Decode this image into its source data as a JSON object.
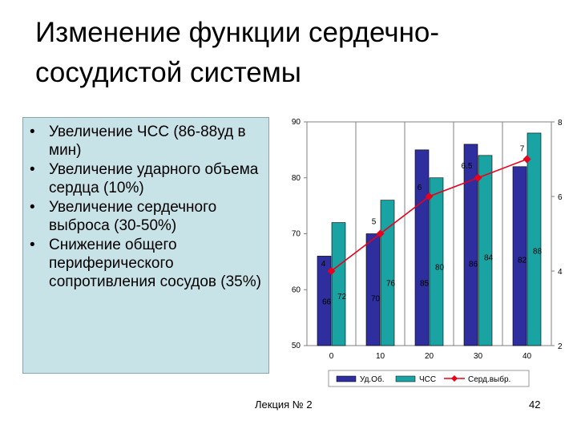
{
  "slide": {
    "title": "Изменение функции сердечно-сосудистой системы",
    "bullets": [
      "Увеличение ЧСС (86-88уд в мин)",
      "Увеличение ударного объема сердца (10%)",
      "Увеличение сердечного выброса (30-50%)",
      "Снижение общего периферического сопротивления сосудов (35%)"
    ],
    "bullet_symbol": "•",
    "footer_left": "Лекция № 2",
    "footer_page": "42"
  },
  "colors": {
    "bar_ud": "#2e2e9e",
    "bar_chss": "#1aa3a3",
    "line_serd": "#e8001c",
    "bullet_box_bg": "#c8e3e8"
  },
  "chart_data": {
    "type": "bar",
    "categories": [
      "0",
      "10",
      "20",
      "30",
      "40"
    ],
    "series": [
      {
        "name": "Уд.Об.",
        "type": "bar",
        "axis": "left",
        "values": [
          66,
          70,
          85,
          86,
          82
        ],
        "value_labels": [
          "66",
          "70",
          "85",
          "86",
          "82"
        ]
      },
      {
        "name": "ЧСС",
        "type": "bar",
        "axis": "left",
        "values": [
          72,
          76,
          80,
          84,
          88
        ],
        "value_labels": [
          "72",
          "76",
          "80",
          "84",
          "88"
        ]
      },
      {
        "name": "Серд.выбр.",
        "type": "line",
        "axis": "right",
        "values": [
          4,
          5,
          6,
          6.5,
          7
        ],
        "value_labels": [
          "4",
          "5",
          "6",
          "6.5",
          "7"
        ]
      }
    ],
    "left_axis": {
      "ylim": [
        50,
        90
      ],
      "ticks": [
        "50",
        "60",
        "70",
        "80",
        "90"
      ]
    },
    "right_axis": {
      "ylim": [
        2,
        8
      ],
      "ticks": [
        "2",
        "4",
        "6",
        "8"
      ]
    },
    "grid": "vertical",
    "legend": "bottom"
  }
}
